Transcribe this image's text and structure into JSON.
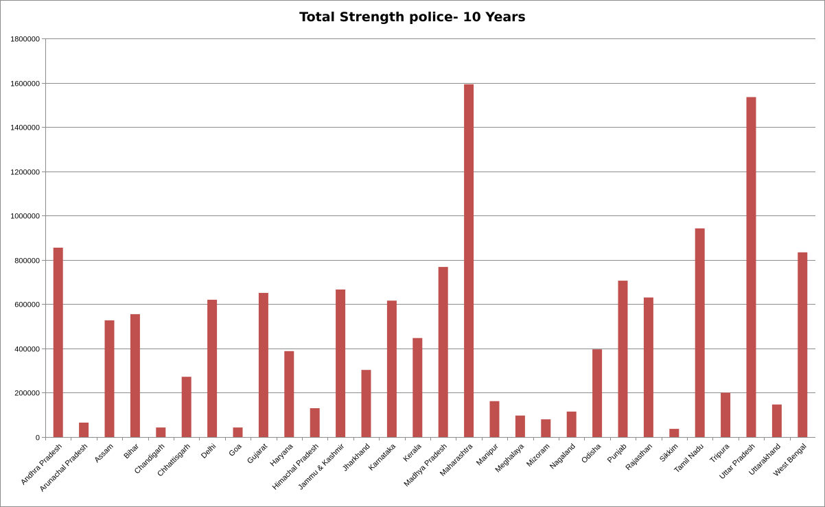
{
  "chart_data": {
    "type": "bar",
    "title": "Total Strength police- 10 Years",
    "xlabel": "",
    "ylabel": "",
    "ylim": [
      0,
      1800000
    ],
    "yticks": [
      "0",
      "200000",
      "400000",
      "600000",
      "800000",
      "1000000",
      "1200000",
      "1400000",
      "1600000",
      "1800000"
    ],
    "grid": true,
    "bar_color": "#c0504d",
    "categories": [
      "Andhra Pradesh",
      "Arunachal Pradesh",
      "Assam",
      "Bihar",
      "Chandigarh",
      "Chhattisgarh",
      "Delhi",
      "Goa",
      "Gujarat",
      "Haryana",
      "Himachal Pradesh",
      "Jammu & Kashmir",
      "Jharkhand",
      "Karnataka",
      "Kerala",
      "Madhya Pradesh",
      "Maharashtra",
      "Manipur",
      "Meghalaya",
      "Mizoram",
      "Nagaland",
      "Odisha",
      "Punjab",
      "Rajasthan",
      "Sikkim",
      "Tamil Nadu",
      "Tripura",
      "Uttar Pradesh",
      "Uttarakhand",
      "West Bengal"
    ],
    "values": [
      855000,
      65000,
      527000,
      555000,
      43000,
      272000,
      620000,
      43000,
      651000,
      388000,
      130000,
      666000,
      303000,
      616000,
      447000,
      768000,
      1593000,
      162000,
      97000,
      80000,
      115000,
      396000,
      706000,
      630000,
      37000,
      942000,
      200000,
      1535000,
      147000,
      834000
    ]
  }
}
